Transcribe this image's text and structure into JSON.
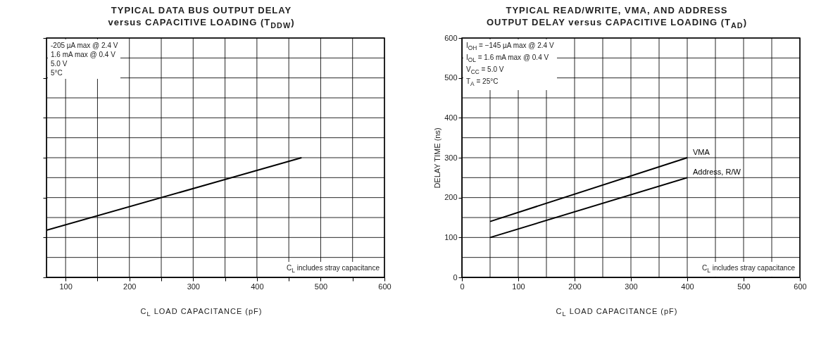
{
  "chart_data": [
    {
      "type": "line",
      "title": "TYPICAL DATA BUS OUTPUT DELAY",
      "subtitle": "versus CAPACITIVE LOADING (T$_{DDW}$)",
      "xlabel": "C$_{L}$ LOAD CAPACITANCE (pF)",
      "series": [
        {
          "color": "#000000",
          "x": [
            70,
            470
          ],
          "values": [
            118,
            300
          ]
        }
      ],
      "xlim": [
        70,
        600
      ],
      "xticks": [
        100,
        {
          "value": 150,
          "label": null
        },
        200,
        {
          "value": 250,
          "label": null
        },
        300,
        {
          "value": 350,
          "label": null
        },
        400,
        {
          "value": 450,
          "label": null
        },
        500,
        {
          "value": 550,
          "label": null
        },
        600
      ],
      "ylim": [
        0,
        600
      ],
      "yticks": [
        0,
        50,
        100,
        150,
        200,
        250,
        300,
        350,
        400,
        450,
        500,
        550,
        600
      ],
      "tick_labels": "x",
      "grid": true,
      "annotations": [
        "-205 µA max @ 2.4 V",
        "1.6 mA max @ 0.4 V",
        "5.0 V",
        "5°C",
        "C$_{L}$ includes stray capacitance"
      ]
    },
    {
      "type": "line",
      "title": "TYPICAL READ/WRITE, VMA, AND ADDRESS",
      "subtitle": "OUTPUT DELAY versus CAPACITIVE LOADING (T$_{AD}$)",
      "xlabel": "C$_{L}$ LOAD CAPACITANCE (pF)",
      "ylabel": "DELAY TIME (ns)",
      "series": [
        {
          "name": "VMA",
          "color": "#000000",
          "x": [
            50,
            400
          ],
          "values": [
            140,
            300
          ]
        },
        {
          "name": "Address, R/W",
          "color": "#000000",
          "x": [
            50,
            400
          ],
          "values": [
            100,
            250
          ]
        }
      ],
      "xlim": [
        0,
        600
      ],
      "xticks": [
        0,
        {
          "value": 50,
          "label": null
        },
        100,
        {
          "value": 150,
          "label": null
        },
        200,
        {
          "value": 250,
          "label": null
        },
        300,
        {
          "value": 350,
          "label": null
        },
        400,
        {
          "value": 450,
          "label": null
        },
        500,
        {
          "value": 550,
          "label": null
        },
        600
      ],
      "ylim": [
        0,
        600
      ],
      "yticks": [
        0,
        {
          "value": 50,
          "label": null
        },
        100,
        {
          "value": 150,
          "label": null
        },
        200,
        {
          "value": 250,
          "label": null
        },
        300,
        {
          "value": 350,
          "label": null
        },
        400,
        {
          "value": 450,
          "label": null
        },
        500,
        {
          "value": 550,
          "label": null
        },
        600
      ],
      "grid": true,
      "annotations": [
        "I$_{OH}$ = −145 µA max @ 2.4 V",
        "I$_{OL}$ = 1.6 mA max @ 0.4 V",
        "V$_{CC}$ = 5.0 V",
        "T$_{A}$ = 25°C",
        "C$_{L}$ includes stray capacitance"
      ]
    }
  ]
}
